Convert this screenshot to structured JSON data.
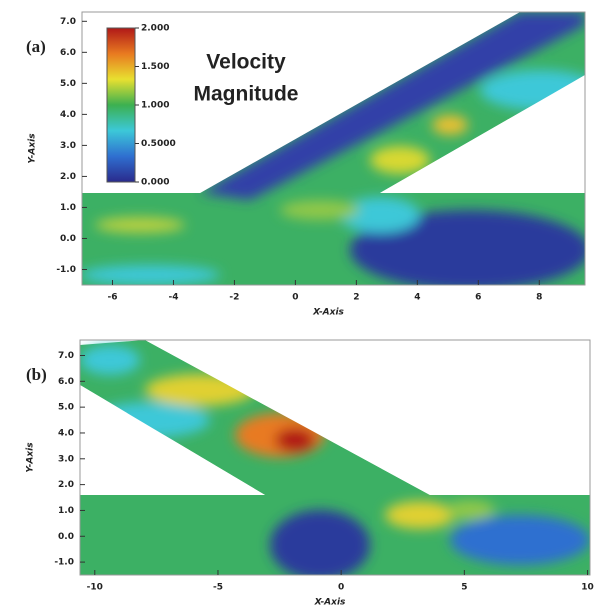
{
  "chart_data": [
    {
      "type": "contour",
      "panel_label": "(a)",
      "xlabel": "X-Axis",
      "ylabel": "Y-Axis",
      "xlim": [
        -7,
        9.5
      ],
      "ylim": [
        -1.5,
        7.3
      ],
      "xticks": [
        -6,
        -4,
        -2,
        0,
        2,
        4,
        6,
        8
      ],
      "yticks": [
        {
          "value": -1,
          "label": "-1.0"
        },
        {
          "value": 0,
          "label": "0.0"
        },
        {
          "value": 1,
          "label": "1.0"
        },
        {
          "value": 2,
          "label": "2.0"
        },
        {
          "value": 3,
          "label": "3.0"
        },
        {
          "value": 4,
          "label": "4.0"
        },
        {
          "value": 5,
          "label": "5.0"
        },
        {
          "value": 6,
          "label": "6.0"
        },
        {
          "value": 7,
          "label": "7.0"
        }
      ],
      "colorbar": {
        "title_lines": [
          "Velocity",
          "Magnitude"
        ],
        "lim": [
          0,
          2
        ],
        "colors": [
          "#2a2a8c",
          "#2f6fd0",
          "#3cc8d8",
          "#3cb050",
          "#e8e030",
          "#e87a20",
          "#b01818"
        ],
        "ticks": [
          {
            "value": 0,
            "label": "0.000"
          },
          {
            "value": 0.5,
            "label": "0.5000"
          },
          {
            "value": 1,
            "label": "1.000"
          },
          {
            "value": 1.5,
            "label": "1.500"
          },
          {
            "value": 2,
            "label": "2.000"
          }
        ]
      }
    },
    {
      "type": "contour",
      "panel_label": "(b)",
      "xlabel": "X-Axis",
      "ylabel": "Y-Axis",
      "xlim": [
        -10.6,
        10.1
      ],
      "ylim": [
        -1.5,
        7.6
      ],
      "xticks": [
        -10,
        -5,
        0,
        5,
        10
      ],
      "yticks": [
        {
          "value": -1,
          "label": "-1.0"
        },
        {
          "value": 0,
          "label": "0.0"
        },
        {
          "value": 1,
          "label": "1.0"
        },
        {
          "value": 2,
          "label": "2.0"
        },
        {
          "value": 3,
          "label": "3.0"
        },
        {
          "value": 4,
          "label": "4.0"
        },
        {
          "value": 5,
          "label": "5.0"
        },
        {
          "value": 6,
          "label": "6.0"
        },
        {
          "value": 7,
          "label": "7.0"
        }
      ]
    }
  ]
}
